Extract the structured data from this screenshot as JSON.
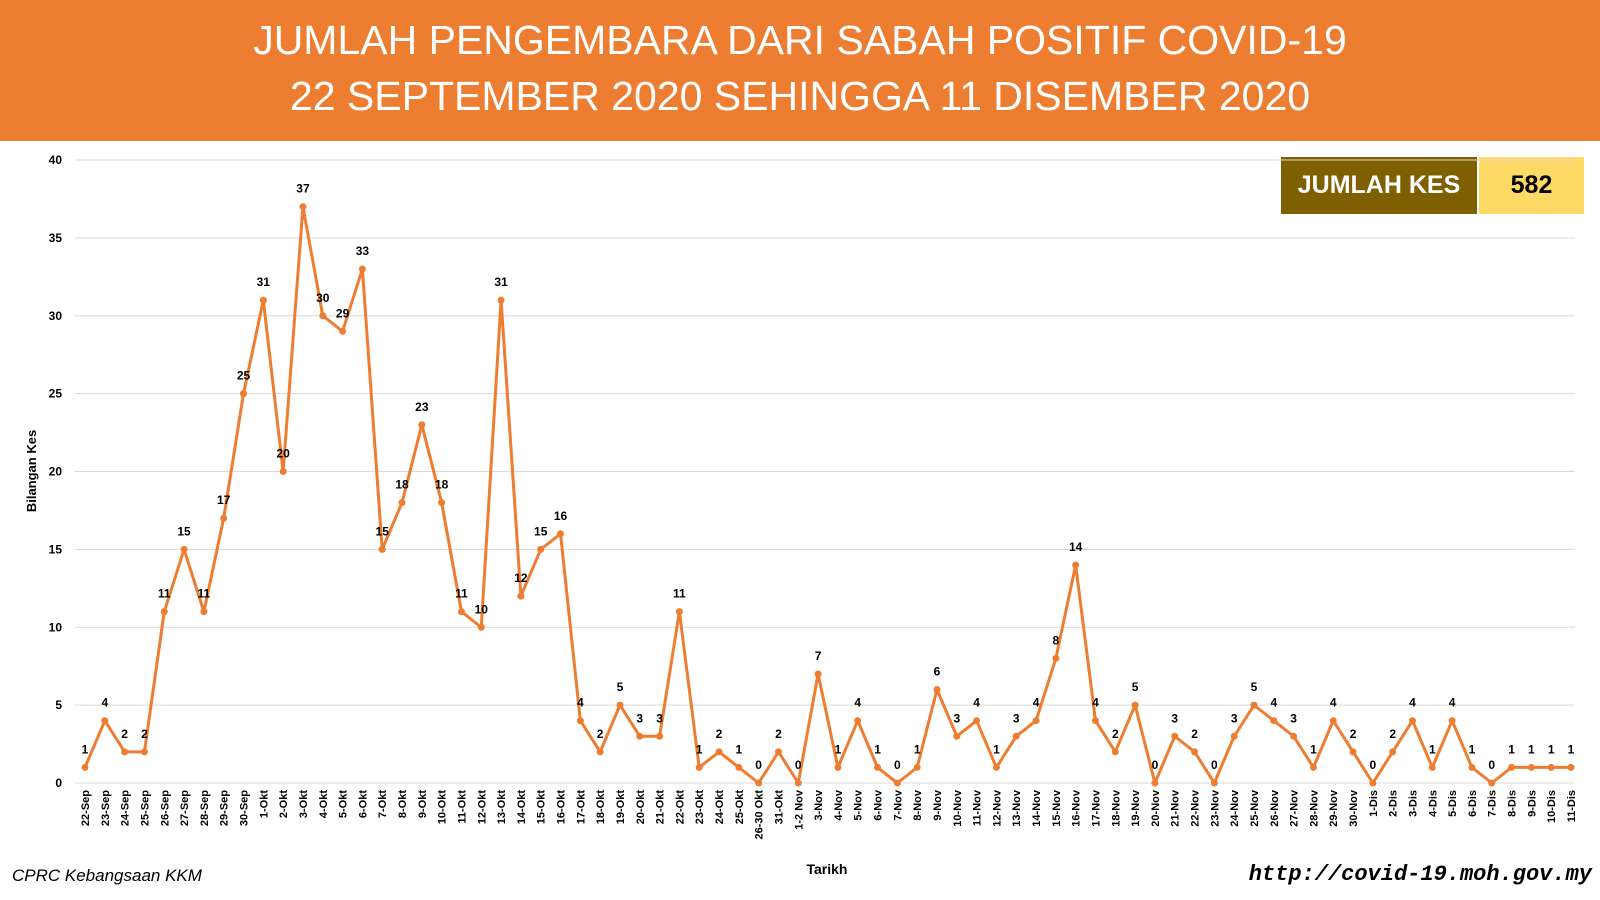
{
  "header": {
    "title": "JUMLAH PENGEMBARA DARI SABAH POSITIF COVID-19",
    "subtitle": "22 SEPTEMBER 2020 SEHINGGA 11 DISEMBER 2020"
  },
  "summary": {
    "label": "JUMLAH KES",
    "value": "582"
  },
  "footer": {
    "source": "CPRC Kebangsaan KKM",
    "url": "http://covid-19.moh.gov.my"
  },
  "colors": {
    "banner": "#ed7d31",
    "line": "#ed7d31",
    "label_box": "#7f6000",
    "value_box": "#ffd966"
  },
  "chart_data": {
    "type": "line",
    "xlabel": "Tarikh",
    "ylabel": "Bilangan Kes",
    "ylim": [
      0,
      40
    ],
    "yticks": [
      0,
      5,
      10,
      15,
      20,
      25,
      30,
      35,
      40
    ],
    "grid": true,
    "categories": [
      "22-Sep",
      "23-Sep",
      "24-Sep",
      "25-Sep",
      "26-Sep",
      "27-Sep",
      "28-Sep",
      "29-Sep",
      "30-Sep",
      "1-Okt",
      "2-Okt",
      "3-Okt",
      "4-Okt",
      "5-Okt",
      "6-Okt",
      "7-Okt",
      "8-Okt",
      "9-Okt",
      "10-Okt",
      "11-Okt",
      "12-Okt",
      "13-Okt",
      "14-Okt",
      "15-Okt",
      "16-Okt",
      "17-Okt",
      "18-Okt",
      "19-Okt",
      "20-Okt",
      "21-Okt",
      "22-Okt",
      "23-Okt",
      "24-Okt",
      "25-Okt",
      "26-30 Okt",
      "31-Okt",
      "1-2 Nov",
      "3-Nov",
      "4-Nov",
      "5-Nov",
      "6-Nov",
      "7-Nov",
      "8-Nov",
      "9-Nov",
      "10-Nov",
      "11-Nov",
      "12-Nov",
      "13-Nov",
      "14-Nov",
      "15-Nov",
      "16-Nov",
      "17-Nov",
      "18-Nov",
      "19-Nov",
      "20-Nov",
      "21-Nov",
      "22-Nov",
      "23-Nov",
      "24-Nov",
      "25-Nov",
      "26-Nov",
      "27-Nov",
      "28-Nov",
      "29-Nov",
      "30-Nov",
      "1-Dis",
      "2-Dis",
      "3-Dis",
      "4-Dis",
      "5-Dis",
      "6-Dis",
      "7-Dis",
      "8-Dis",
      "9-Dis",
      "10-Dis",
      "11-Dis"
    ],
    "values": [
      1,
      4,
      2,
      2,
      11,
      15,
      11,
      17,
      25,
      31,
      20,
      37,
      30,
      29,
      33,
      15,
      18,
      23,
      18,
      11,
      10,
      31,
      12,
      15,
      16,
      4,
      2,
      5,
      3,
      3,
      11,
      1,
      2,
      1,
      0,
      2,
      0,
      7,
      1,
      4,
      1,
      0,
      1,
      6,
      3,
      4,
      1,
      3,
      4,
      8,
      14,
      4,
      2,
      5,
      0,
      3,
      2,
      0,
      3,
      5,
      4,
      3,
      1,
      4,
      2,
      0,
      2,
      4,
      1,
      4,
      1,
      0,
      1,
      1,
      1,
      1
    ]
  }
}
